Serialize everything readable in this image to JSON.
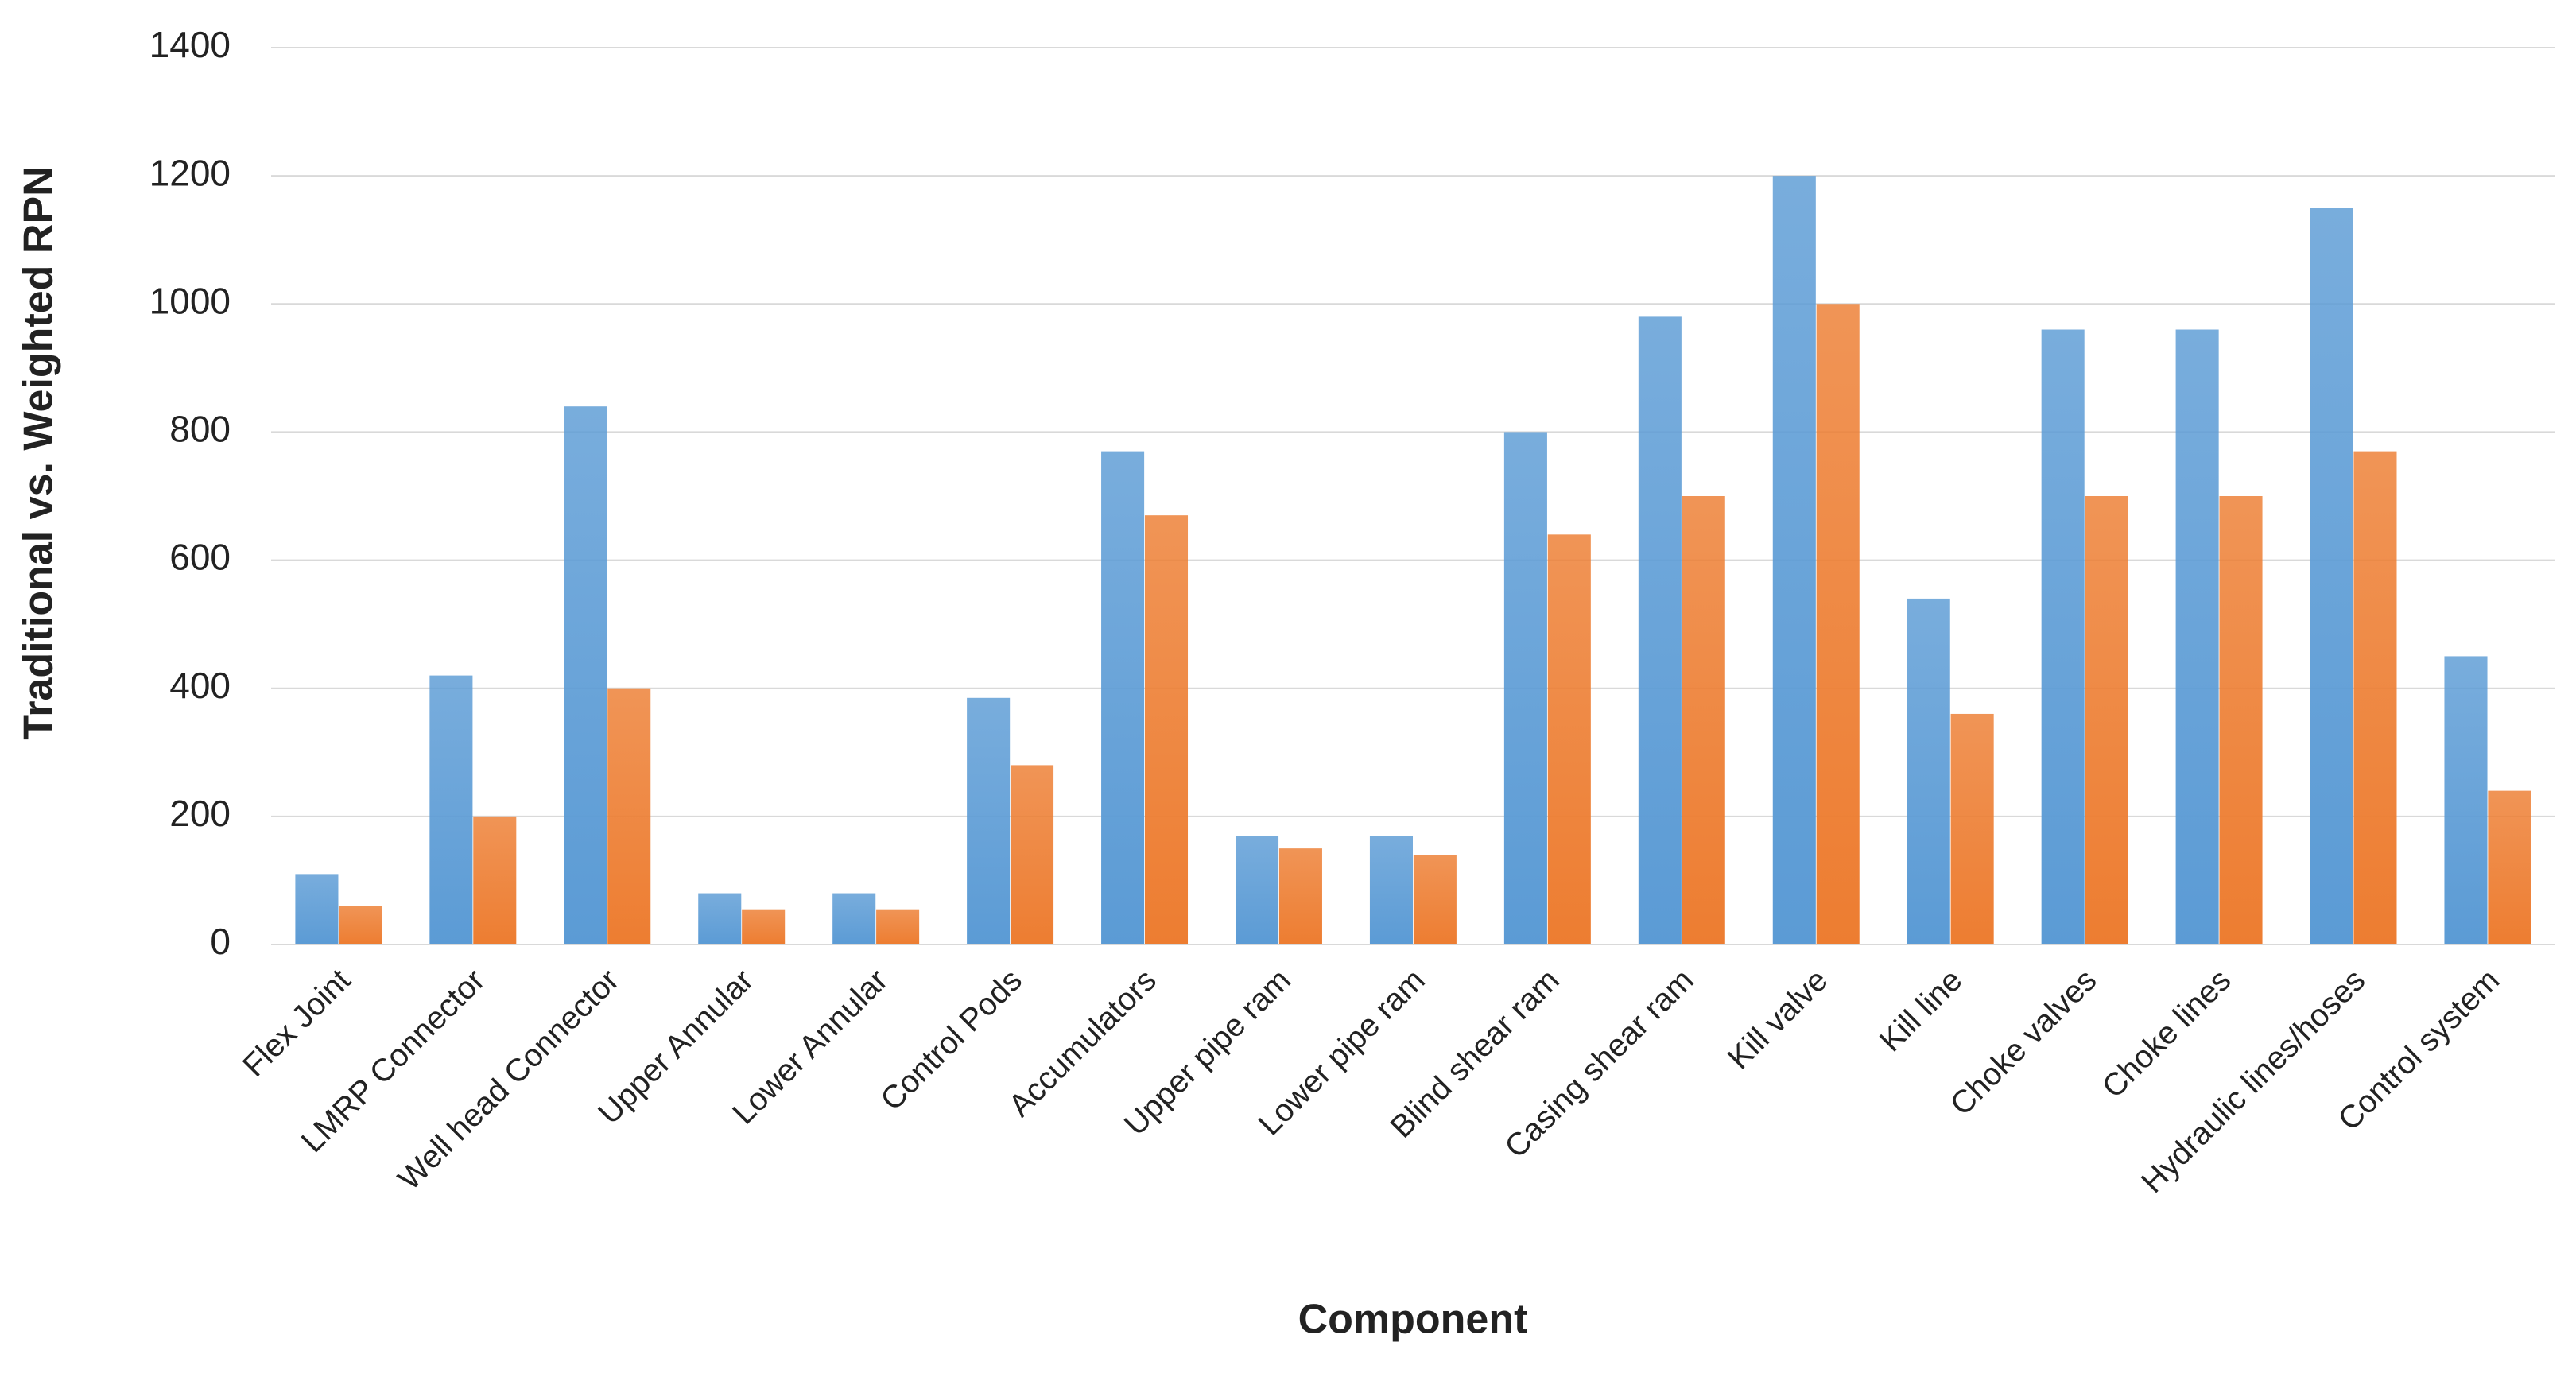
{
  "chart_data": {
    "type": "bar",
    "x_label": "Component",
    "y_label": "Traditional vs. Weighted RPN",
    "categories": [
      "Flex Joint",
      "LMRP Connector",
      "Well head Connector",
      "Upper Annular",
      "Lower Annular",
      "Control Pods",
      "Accumulators",
      "Upper pipe ram",
      "Lower pipe ram",
      "Blind shear ram",
      "Casing shear ram",
      "Kill valve",
      "Kill line",
      "Choke valves",
      "Choke lines",
      "Hydraulic lines/hoses",
      "Control system"
    ],
    "series": [
      {
        "color": "#5b9bd5",
        "values": [
          110,
          420,
          840,
          80,
          80,
          385,
          770,
          170,
          170,
          800,
          980,
          1200,
          540,
          960,
          960,
          1150,
          450
        ]
      },
      {
        "color": "#ed7d31",
        "values": [
          60,
          200,
          400,
          55,
          55,
          280,
          670,
          150,
          140,
          640,
          700,
          1000,
          360,
          700,
          700,
          770,
          240
        ]
      }
    ],
    "ylim": [
      0,
      1400
    ],
    "yticks": [
      0,
      200,
      400,
      600,
      800,
      1000,
      1200,
      1400
    ],
    "grid": true
  }
}
